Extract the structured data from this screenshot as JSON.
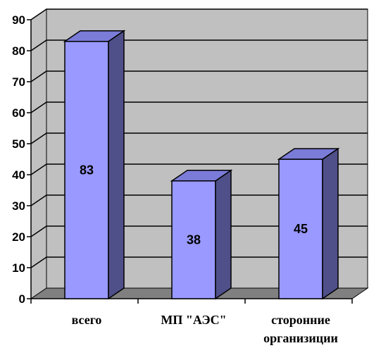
{
  "chart_data": {
    "type": "bar",
    "categories": [
      "всего",
      "МП \"АЭС\"",
      "сторонние организиции"
    ],
    "category_lines": [
      [
        "всего"
      ],
      [
        "МП \"АЭС\""
      ],
      [
        "сторонние",
        "организиции"
      ]
    ],
    "values": [
      83,
      38,
      45
    ],
    "data_labels": [
      "83",
      "38",
      "45"
    ],
    "title": "",
    "xlabel": "",
    "ylabel": "",
    "ylim": [
      0,
      90
    ],
    "yticks": [
      0,
      10,
      20,
      30,
      40,
      50,
      60,
      70,
      80,
      90
    ],
    "grid": true,
    "legend": "none",
    "style": "3d-column",
    "colors": {
      "bar_front": "#9999FF",
      "bar_top": "#7B7BD8",
      "bar_side": "#4F4F8A",
      "wall": "#C0C0C0",
      "floor": "#808080",
      "gridline": "#000000"
    }
  }
}
